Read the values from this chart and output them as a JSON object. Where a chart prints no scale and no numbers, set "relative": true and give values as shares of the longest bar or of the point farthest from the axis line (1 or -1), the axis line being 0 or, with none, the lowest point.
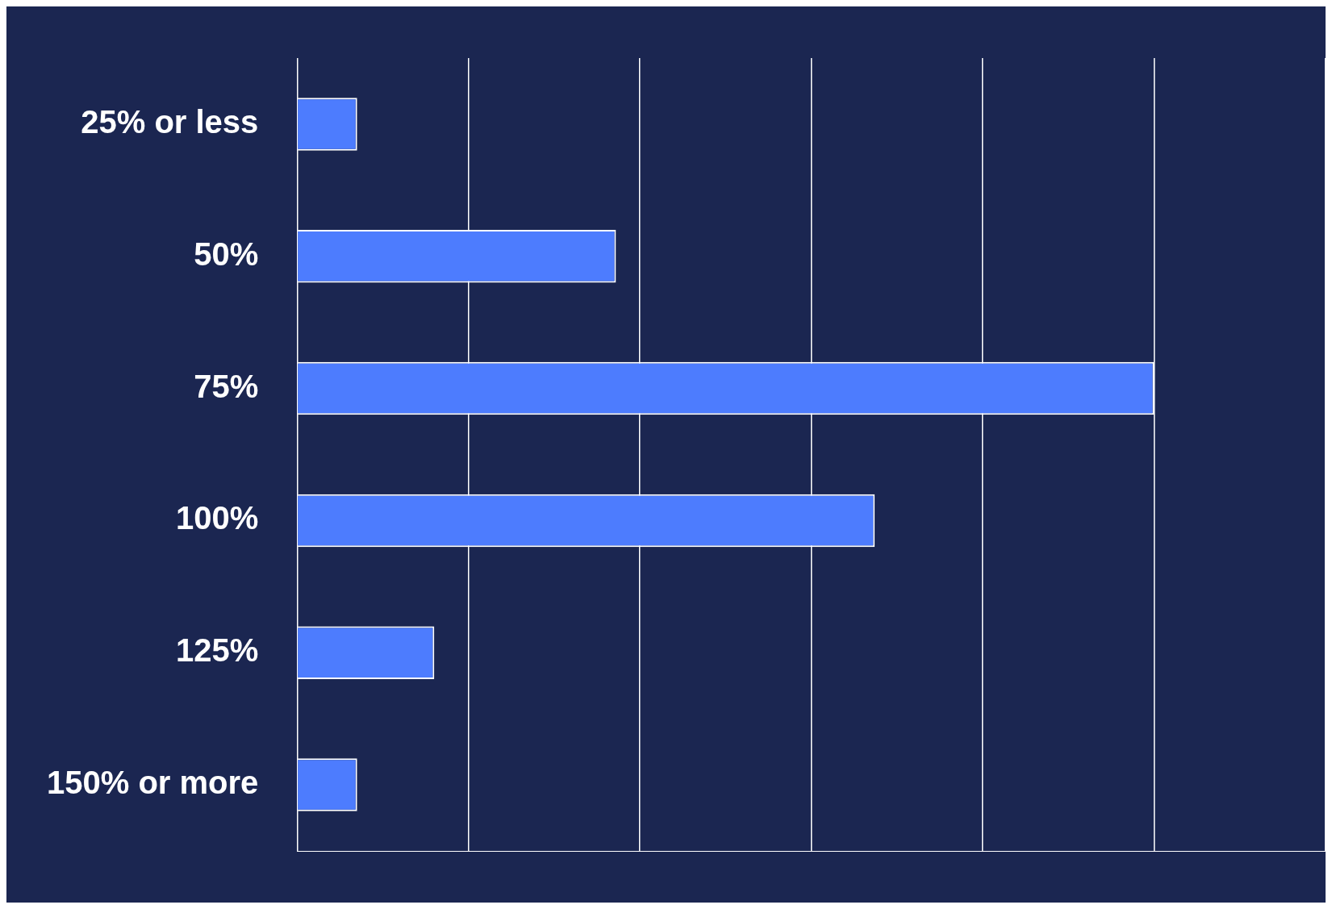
{
  "chart_data": {
    "type": "bar",
    "orientation": "horizontal",
    "relative": true,
    "grid": "x",
    "legend": false,
    "categories": [
      "25% or less",
      "50%",
      "75%",
      "100%",
      "125%",
      "150% or more"
    ],
    "values": [
      0.07,
      0.372,
      1,
      0.674,
      0.16,
      0.07
    ],
    "color": "#4d7cfe"
  }
}
